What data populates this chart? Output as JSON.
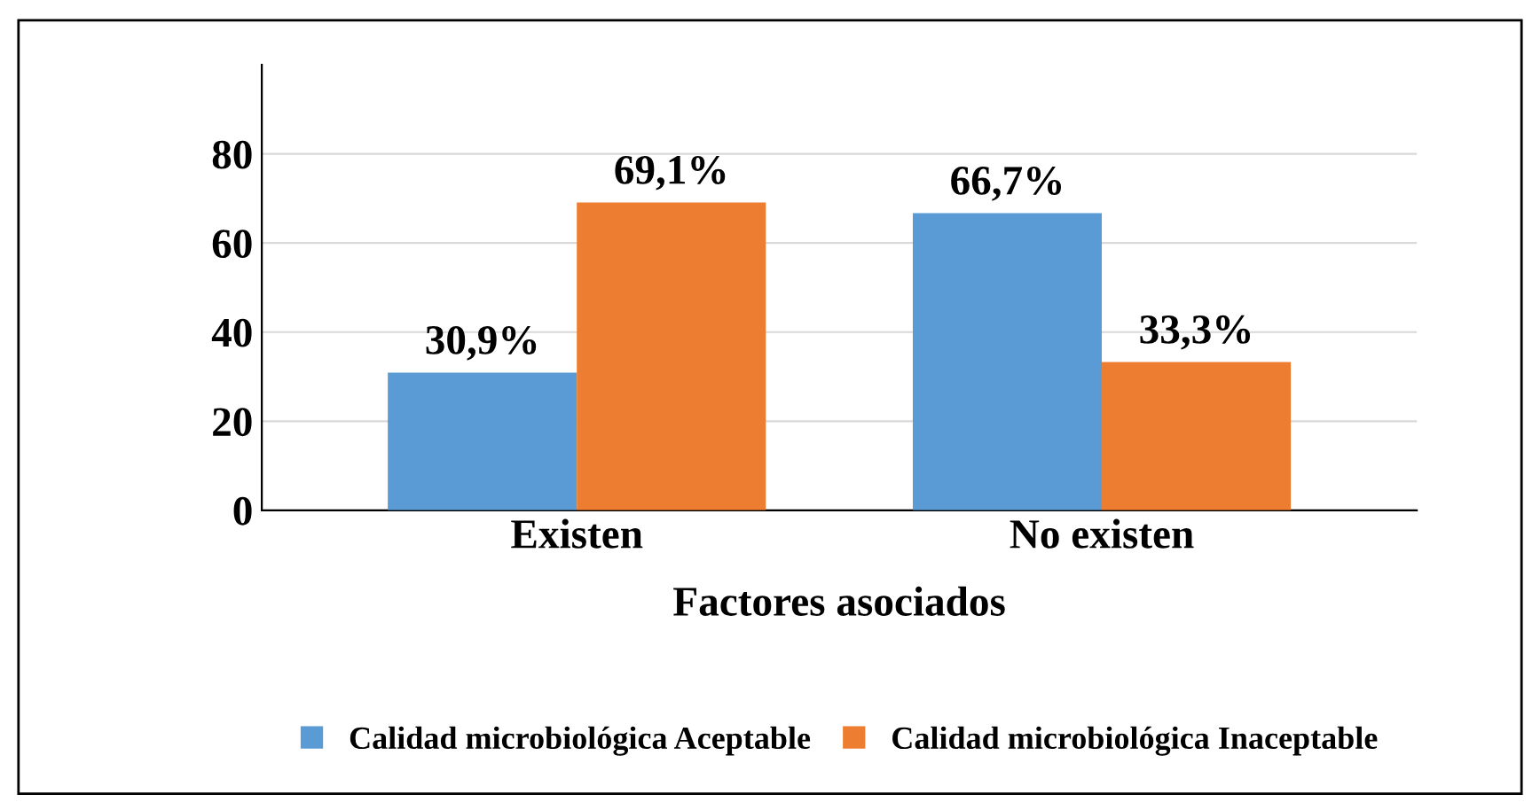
{
  "chart_data": {
    "type": "bar",
    "xlabel": "Factores asociados",
    "categories": [
      "Existen",
      "No existen"
    ],
    "series": [
      {
        "name": "Calidad microbiológica Aceptable",
        "color": "#5b9bd5",
        "values": [
          30.9,
          66.7
        ],
        "value_labels": [
          "30,9%",
          "66,7%"
        ]
      },
      {
        "name": "Calidad microbiológica Inaceptable",
        "color": "#ed7d31",
        "values": [
          69.1,
          33.3
        ],
        "value_labels": [
          "69,1%",
          "33,3%"
        ]
      }
    ],
    "ylim": [
      0,
      100
    ],
    "yticks": [
      0,
      20,
      40,
      60,
      80
    ],
    "grid": "y",
    "legend": "bottom"
  }
}
